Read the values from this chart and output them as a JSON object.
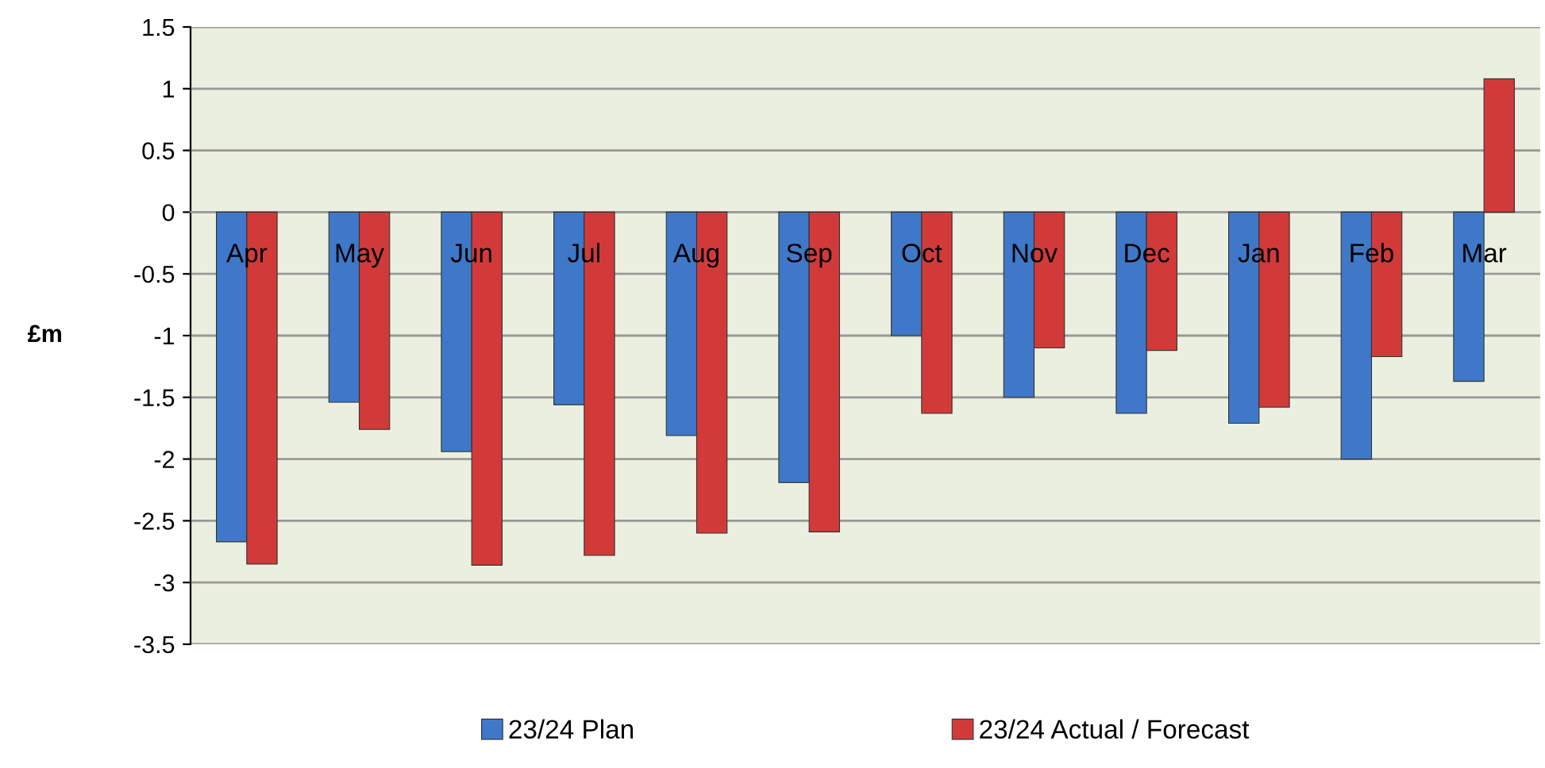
{
  "chart_data": {
    "type": "bar",
    "ylabel": "£m",
    "categories": [
      "Apr",
      "May",
      "Jun",
      "Jul",
      "Aug",
      "Sep",
      "Oct",
      "Nov",
      "Dec",
      "Jan",
      "Feb",
      "Mar"
    ],
    "series": [
      {
        "name": "23/24 Plan",
        "color": "#3f78c8",
        "values": [
          -2.67,
          -1.54,
          -1.94,
          -1.56,
          -1.81,
          -2.19,
          -1.0,
          -1.5,
          -1.63,
          -1.71,
          -2.0,
          -1.37
        ]
      },
      {
        "name": "23/24 Actual / Forecast",
        "color": "#d23a3a",
        "values": [
          -2.85,
          -1.76,
          -2.86,
          -2.78,
          -2.6,
          -2.59,
          -1.63,
          -1.1,
          -1.12,
          -1.58,
          -1.17,
          1.08
        ]
      }
    ],
    "ylim": [
      -3.5,
      1.5
    ],
    "yticks": [
      1.5,
      1,
      0.5,
      0,
      -0.5,
      -1,
      -1.5,
      -2,
      -2.5,
      -3,
      -3.5
    ],
    "grid": "y",
    "legend": "bottom"
  }
}
